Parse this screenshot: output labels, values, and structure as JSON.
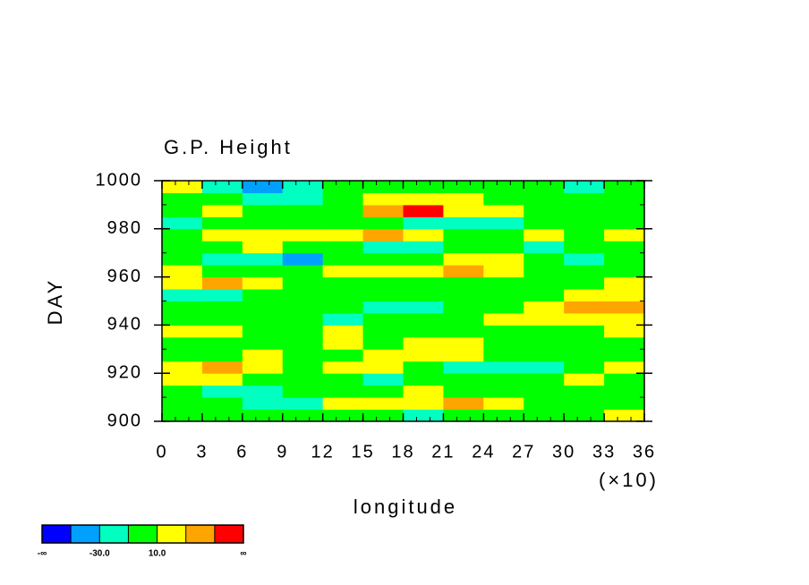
{
  "chart_data": {
    "type": "contour",
    "title": "G.P. Height",
    "xlabel": "longitude",
    "ylabel": "DAY",
    "xscale_label": "(×10)",
    "xlim": [
      0,
      36
    ],
    "xticks": [
      0,
      3,
      6,
      9,
      12,
      15,
      18,
      21,
      24,
      27,
      30,
      33,
      36
    ],
    "ylim": [
      900,
      1000
    ],
    "yticks": [
      900,
      920,
      940,
      960,
      980,
      1000
    ],
    "x": [
      1.5,
      4.5,
      7.5,
      10.5,
      13.5,
      16.5,
      19.5,
      22.5,
      25.5,
      28.5,
      31.5,
      34.5
    ],
    "y": [
      902.5,
      907.5,
      912.5,
      917.5,
      922.5,
      927.5,
      932.5,
      937.5,
      942.5,
      947.5,
      952.5,
      957.5,
      962.5,
      967.5,
      972.5,
      977.5,
      982.5,
      987.5,
      992.5,
      997.5
    ],
    "z": [
      [
        5,
        0,
        -5,
        0,
        5,
        0,
        -15,
        -5,
        0,
        5,
        0,
        12
      ],
      [
        0,
        5,
        -12,
        -15,
        15,
        20,
        28,
        45,
        15,
        0,
        -5,
        0
      ],
      [
        -5,
        -15,
        -20,
        -10,
        0,
        5,
        15,
        8,
        0,
        -5,
        -10,
        5
      ],
      [
        15,
        20,
        5,
        0,
        -5,
        -12,
        -5,
        0,
        5,
        0,
        10,
        5
      ],
      [
        25,
        35,
        15,
        5,
        10,
        15,
        0,
        -15,
        -20,
        -25,
        -10,
        15
      ],
      [
        5,
        0,
        10,
        0,
        5,
        20,
        28,
        15,
        5,
        0,
        -5,
        0
      ],
      [
        0,
        -5,
        5,
        0,
        12,
        5,
        25,
        15,
        0,
        -5,
        0,
        -5
      ],
      [
        15,
        10,
        0,
        5,
        15,
        5,
        -10,
        0,
        5,
        0,
        5,
        12
      ],
      [
        5,
        0,
        -5,
        -10,
        -12,
        -5,
        0,
        5,
        15,
        20,
        25,
        15
      ],
      [
        0,
        5,
        0,
        -5,
        0,
        -12,
        -20,
        -10,
        0,
        15,
        35,
        45
      ],
      [
        -12,
        -15,
        -5,
        0,
        5,
        0,
        -5,
        -10,
        -5,
        5,
        15,
        20
      ],
      [
        25,
        30,
        15,
        5,
        -5,
        0,
        5,
        0,
        -5,
        -5,
        0,
        12
      ],
      [
        10,
        5,
        0,
        0,
        15,
        25,
        20,
        35,
        15,
        5,
        0,
        5
      ],
      [
        -10,
        -15,
        -20,
        -35,
        -10,
        5,
        0,
        25,
        15,
        -5,
        -12,
        -5
      ],
      [
        0,
        5,
        10,
        0,
        -5,
        -12,
        -15,
        -5,
        -10,
        -15,
        -5,
        0
      ],
      [
        5,
        15,
        25,
        20,
        15,
        30,
        10,
        0,
        5,
        15,
        5,
        12
      ],
      [
        -15,
        -10,
        0,
        5,
        0,
        -10,
        -15,
        -20,
        -12,
        -5,
        0,
        -10
      ],
      [
        0,
        15,
        5,
        0,
        5,
        40,
        55,
        25,
        10,
        0,
        -10,
        -5
      ],
      [
        5,
        0,
        -15,
        -20,
        0,
        15,
        25,
        15,
        5,
        0,
        5,
        0
      ],
      [
        15,
        -12,
        -35,
        -15,
        -5,
        0,
        5,
        0,
        -5,
        0,
        -12,
        0
      ]
    ],
    "colorbar": {
      "levels": [
        -50,
        -30,
        -10,
        10,
        30,
        50
      ],
      "colors": [
        "#0000ff",
        "#00a0ff",
        "#00ffc0",
        "#00ff00",
        "#ffff00",
        "#ffa500",
        "#ff0000"
      ],
      "ticks": [
        {
          "value": -30,
          "label": "-30.0"
        },
        {
          "value": 10,
          "label": "10.0"
        }
      ],
      "low_label": "-∞",
      "high_label": "∞"
    }
  }
}
